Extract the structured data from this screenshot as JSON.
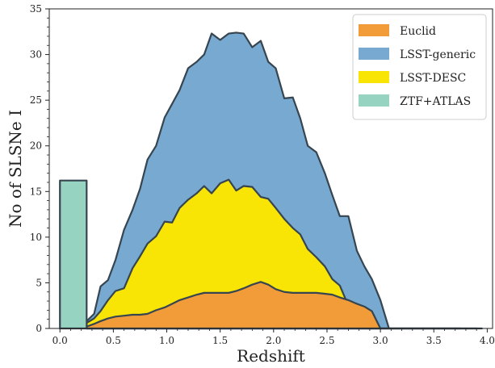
{
  "chart_data": {
    "type": "area",
    "xlabel": "Redshift",
    "ylabel": "No of SLSNe I",
    "xlim": [
      -0.1,
      4.05
    ],
    "ylim": [
      0,
      35
    ],
    "xticks": [
      0.0,
      0.5,
      1.0,
      1.5,
      2.0,
      2.5,
      3.0,
      3.5,
      4.0
    ],
    "xtick_labels": [
      "0.0",
      "0.5",
      "1.0",
      "1.5",
      "2.0",
      "2.5",
      "3.0",
      "3.5",
      "4.0"
    ],
    "yticks": [
      0,
      5,
      10,
      15,
      20,
      25,
      30,
      35
    ],
    "ytick_labels": [
      "0",
      "5",
      "10",
      "15",
      "20",
      "25",
      "30",
      "35"
    ],
    "grid": false,
    "legend_position": "top-right",
    "legend": [
      "Euclid",
      "LSST-generic",
      "LSST-DESC",
      "ZTF+ATLAS"
    ],
    "series": [
      {
        "name": "LSST-generic",
        "color": "#78a9d1",
        "x": [
          0.25,
          0.32,
          0.38,
          0.45,
          0.52,
          0.6,
          0.68,
          0.75,
          0.82,
          0.9,
          0.98,
          1.05,
          1.12,
          1.2,
          1.28,
          1.35,
          1.42,
          1.5,
          1.58,
          1.65,
          1.72,
          1.8,
          1.88,
          1.95,
          2.02,
          2.1,
          2.18,
          2.25,
          2.32,
          2.4,
          2.48,
          2.55,
          2.62,
          2.7,
          2.78,
          2.85,
          2.92,
          3.0,
          3.08,
          3.15,
          3.22,
          3.3,
          3.38,
          3.45,
          3.52,
          3.6,
          3.68,
          3.75,
          3.82,
          3.9,
          3.95
        ],
        "y": [
          0.8,
          1.6,
          4.6,
          5.3,
          7.5,
          10.8,
          13.0,
          15.3,
          18.5,
          20.0,
          23.1,
          24.6,
          26.1,
          28.5,
          29.2,
          30.0,
          32.3,
          31.6,
          32.3,
          32.4,
          32.3,
          30.8,
          31.5,
          29.2,
          28.5,
          25.2,
          25.3,
          23.0,
          20.0,
          19.3,
          17.0,
          14.6,
          12.3,
          12.3,
          8.5,
          6.8,
          5.4,
          3.1,
          0,
          0,
          0,
          0,
          0,
          0,
          0,
          0,
          0,
          0,
          0,
          0,
          0
        ]
      },
      {
        "name": "LSST-DESC",
        "color": "#f8e506",
        "x": [
          0.25,
          0.32,
          0.38,
          0.45,
          0.52,
          0.6,
          0.68,
          0.75,
          0.82,
          0.9,
          0.98,
          1.05,
          1.12,
          1.2,
          1.28,
          1.35,
          1.42,
          1.5,
          1.58,
          1.65,
          1.72,
          1.8,
          1.88,
          1.95,
          2.02,
          2.1,
          2.18,
          2.25,
          2.32,
          2.4,
          2.48,
          2.55,
          2.62,
          2.7,
          2.78,
          2.85,
          2.92,
          3.0,
          3.08,
          3.15,
          3.22,
          3.3,
          3.38,
          3.45,
          3.52,
          3.6,
          3.68,
          3.75,
          3.82,
          3.9
        ],
        "y": [
          0.6,
          1.1,
          1.9,
          3.1,
          4.1,
          4.4,
          6.6,
          7.9,
          9.3,
          10.1,
          11.7,
          11.6,
          13.2,
          14.1,
          14.8,
          15.6,
          14.8,
          15.9,
          16.3,
          15.1,
          15.6,
          15.5,
          14.4,
          14.2,
          13.2,
          12.0,
          11.0,
          10.3,
          8.7,
          7.8,
          6.8,
          5.4,
          4.7,
          2.5,
          0.7,
          0.6,
          0.4,
          0,
          0,
          0,
          0,
          0,
          0,
          0,
          0,
          0,
          0,
          0,
          0,
          0
        ]
      },
      {
        "name": "Euclid",
        "color": "#f19b39",
        "x": [
          0.25,
          0.32,
          0.38,
          0.45,
          0.52,
          0.6,
          0.68,
          0.75,
          0.82,
          0.9,
          0.98,
          1.05,
          1.12,
          1.2,
          1.28,
          1.35,
          1.42,
          1.5,
          1.58,
          1.65,
          1.72,
          1.8,
          1.88,
          1.95,
          2.02,
          2.1,
          2.18,
          2.25,
          2.32,
          2.4,
          2.48,
          2.55,
          2.62,
          2.7,
          2.78,
          2.85,
          2.92,
          3.0,
          3.08,
          3.15,
          3.22,
          3.3,
          3.38,
          3.45,
          3.52,
          3.6,
          3.68,
          3.75
        ],
        "y": [
          0.2,
          0.5,
          0.8,
          1.1,
          1.3,
          1.4,
          1.5,
          1.5,
          1.6,
          2.0,
          2.3,
          2.7,
          3.1,
          3.4,
          3.7,
          3.9,
          3.9,
          3.9,
          3.9,
          4.1,
          4.4,
          4.8,
          5.1,
          4.8,
          4.3,
          4.0,
          3.9,
          3.9,
          3.9,
          3.9,
          3.8,
          3.7,
          3.4,
          3.1,
          2.7,
          2.4,
          1.9,
          0,
          0,
          0,
          0,
          0,
          0,
          0,
          0,
          0,
          0,
          0
        ]
      },
      {
        "name": "ZTF+ATLAS",
        "color": "#96d4c1",
        "x": [
          0.0,
          0.25
        ],
        "y": [
          16.2,
          16.2
        ]
      }
    ]
  }
}
